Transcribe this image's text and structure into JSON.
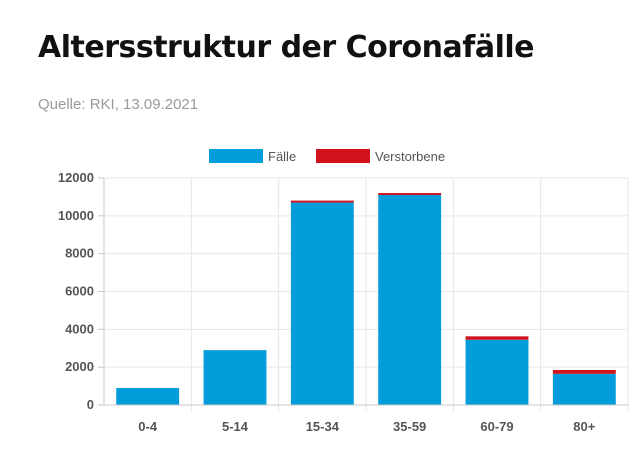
{
  "header": {
    "title": "Altersstruktur der Coronafälle",
    "source": "Quelle: RKI, 13.09.2021"
  },
  "colors": {
    "cases": "#049ddc",
    "deaths": "#d0121b",
    "grid": "#e6e6e6",
    "axis": "#c8c8c8"
  },
  "chart_data": {
    "type": "bar",
    "stacked": true,
    "categories": [
      "0-4",
      "5-14",
      "15-34",
      "35-59",
      "60-79",
      "80+"
    ],
    "series": [
      {
        "name": "Fälle",
        "color": "#049ddc",
        "values": [
          900,
          2900,
          10700,
          11100,
          3450,
          1650
        ]
      },
      {
        "name": "Verstorbene",
        "color": "#d0121b",
        "values": [
          0,
          0,
          5,
          70,
          180,
          200
        ]
      }
    ],
    "ylim": [
      0,
      12000
    ],
    "yticks": [
      0,
      2000,
      4000,
      6000,
      8000,
      10000,
      12000
    ],
    "legend_position": "top-center",
    "grid": true
  }
}
